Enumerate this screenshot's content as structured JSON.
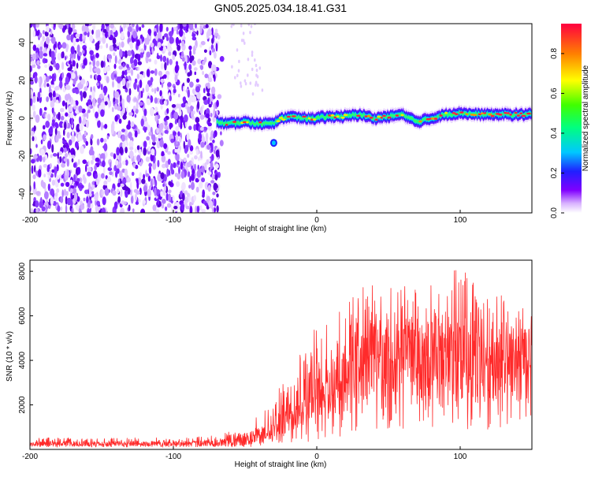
{
  "figure": {
    "title": "GN05.2025.034.18.41.G31"
  },
  "chart_data": [
    {
      "type": "heatmap",
      "title": "GN05.2025.034.18.41.G31",
      "xlabel": "Height of straight line (km)",
      "ylabel": "Frequency (Hz)",
      "xlim": [
        -200,
        150
      ],
      "ylim": [
        -50,
        50
      ],
      "xticks": [
        "-200",
        "-100",
        "0",
        "100"
      ],
      "yticks": [
        "-40",
        "-20",
        "0",
        "20",
        "40"
      ],
      "grid": false,
      "colorbar": {
        "label": "Normalized spectral amplitude",
        "range": [
          0,
          0.95
        ],
        "ticks": [
          "0.0",
          "0.2",
          "0.4",
          "0.6",
          "0.8"
        ],
        "colors": [
          "#ffffff",
          "#d9b3ff",
          "#8000ff",
          "#2020ff",
          "#00c8ff",
          "#00ff80",
          "#40ff00",
          "#ffff00",
          "#ff8000",
          "#ff0040"
        ]
      },
      "trace": {
        "x": [
          -70,
          -60,
          -50,
          -40,
          -30,
          -20,
          -10,
          0,
          10,
          20,
          30,
          40,
          50,
          60,
          70,
          80,
          90,
          100,
          110,
          120,
          130,
          140,
          150
        ],
        "y": [
          -2,
          -3,
          -2,
          -3,
          -2,
          1,
          0,
          0,
          1,
          1,
          2,
          0,
          1,
          2,
          -2,
          0,
          2,
          3,
          2,
          2,
          2,
          2,
          2
        ]
      },
      "noise_region_x": [
        -200,
        -68
      ]
    },
    {
      "type": "line",
      "xlabel": "Height of straight line (km)",
      "ylabel": "SNR (10 * v/v)",
      "xlim": [
        -200,
        150
      ],
      "ylim": [
        0,
        8500
      ],
      "xticks": [
        "-200",
        "-100",
        "0",
        "100"
      ],
      "yticks": [
        "2000",
        "4000",
        "6000",
        "8000"
      ],
      "grid": false,
      "series": [
        {
          "color": "#ff2a2a",
          "x": [
            -200,
            -175,
            -150,
            -125,
            -100,
            -75,
            -60,
            -50,
            -40,
            -30,
            -25,
            -20,
            -10,
            0,
            10,
            20,
            30,
            40,
            50,
            60,
            70,
            80,
            90,
            100,
            110,
            120,
            130,
            140,
            150
          ],
          "y": [
            250,
            250,
            260,
            250,
            260,
            280,
            300,
            450,
            600,
            800,
            1200,
            1800,
            2200,
            2600,
            3000,
            3600,
            4000,
            4200,
            4100,
            4400,
            4200,
            4000,
            4300,
            4100,
            4000,
            3900,
            4000,
            3800,
            4000
          ],
          "band_low": [
            100,
            100,
            100,
            100,
            100,
            120,
            100,
            100,
            150,
            150,
            200,
            300,
            300,
            400,
            500,
            600,
            800,
            900,
            700,
            900,
            800,
            800,
            900,
            800,
            900,
            900,
            1000,
            900,
            1000
          ],
          "band_high": [
            500,
            550,
            500,
            550,
            500,
            600,
            800,
            1200,
            1500,
            2200,
            3300,
            4000,
            4800,
            5600,
            6000,
            6500,
            7300,
            7400,
            7300,
            7900,
            7600,
            7400,
            7500,
            8500,
            7400,
            7000,
            7000,
            6800,
            6300
          ]
        }
      ]
    }
  ]
}
